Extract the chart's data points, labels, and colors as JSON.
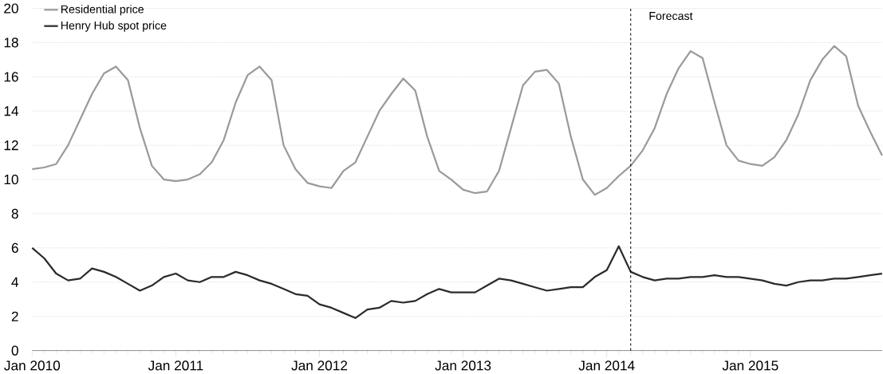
{
  "chart_data": {
    "type": "line",
    "x": [
      "2010-01",
      "2010-02",
      "2010-03",
      "2010-04",
      "2010-05",
      "2010-06",
      "2010-07",
      "2010-08",
      "2010-09",
      "2010-10",
      "2010-11",
      "2010-12",
      "2011-01",
      "2011-02",
      "2011-03",
      "2011-04",
      "2011-05",
      "2011-06",
      "2011-07",
      "2011-08",
      "2011-09",
      "2011-10",
      "2011-11",
      "2011-12",
      "2012-01",
      "2012-02",
      "2012-03",
      "2012-04",
      "2012-05",
      "2012-06",
      "2012-07",
      "2012-08",
      "2012-09",
      "2012-10",
      "2012-11",
      "2012-12",
      "2013-01",
      "2013-02",
      "2013-03",
      "2013-04",
      "2013-05",
      "2013-06",
      "2013-07",
      "2013-08",
      "2013-09",
      "2013-10",
      "2013-11",
      "2013-12",
      "2014-01",
      "2014-02",
      "2014-03",
      "2014-04",
      "2014-05",
      "2014-06",
      "2014-07",
      "2014-08",
      "2014-09",
      "2014-10",
      "2014-11",
      "2014-12",
      "2015-01",
      "2015-02",
      "2015-03",
      "2015-04",
      "2015-05",
      "2015-06",
      "2015-07",
      "2015-08",
      "2015-09",
      "2015-10",
      "2015-11",
      "2015-12"
    ],
    "series": [
      {
        "name": "Residential price",
        "color": "#9a9a9a",
        "values": [
          10.6,
          10.7,
          10.9,
          12.0,
          13.5,
          15.0,
          16.2,
          16.6,
          15.8,
          13.0,
          10.8,
          10.0,
          9.9,
          10.0,
          10.3,
          11.0,
          12.3,
          14.5,
          16.1,
          16.6,
          15.8,
          12.0,
          10.6,
          9.8,
          9.6,
          9.5,
          10.5,
          11.0,
          12.5,
          14.0,
          15.0,
          15.9,
          15.2,
          12.5,
          10.5,
          10.0,
          9.4,
          9.2,
          9.3,
          10.5,
          13.0,
          15.5,
          16.3,
          16.4,
          15.6,
          12.5,
          10.0,
          9.1,
          9.5,
          10.2,
          10.8,
          11.7,
          13.0,
          15.0,
          16.5,
          17.5,
          17.1,
          14.5,
          12.0,
          11.1,
          10.9,
          10.8,
          11.3,
          12.3,
          13.8,
          15.8,
          17.0,
          17.8,
          17.2,
          14.3,
          12.8,
          11.4
        ]
      },
      {
        "name": "Henry Hub spot price",
        "color": "#2b2b2b",
        "values": [
          6.0,
          5.4,
          4.5,
          4.1,
          4.2,
          4.8,
          4.6,
          4.3,
          3.9,
          3.5,
          3.8,
          4.3,
          4.5,
          4.1,
          4.0,
          4.3,
          4.3,
          4.6,
          4.4,
          4.1,
          3.9,
          3.6,
          3.3,
          3.2,
          2.7,
          2.5,
          2.2,
          1.9,
          2.4,
          2.5,
          2.9,
          2.8,
          2.9,
          3.3,
          3.6,
          3.4,
          3.4,
          3.4,
          3.8,
          4.2,
          4.1,
          3.9,
          3.7,
          3.5,
          3.6,
          3.7,
          3.7,
          4.3,
          4.7,
          6.1,
          4.6,
          4.3,
          4.1,
          4.2,
          4.2,
          4.3,
          4.3,
          4.4,
          4.3,
          4.3,
          4.2,
          4.1,
          3.9,
          3.8,
          4.0,
          4.1,
          4.1,
          4.2,
          4.2,
          4.3,
          4.4,
          4.5
        ]
      }
    ],
    "xlim": [
      "2010-01",
      "2015-12"
    ],
    "xticks": [
      {
        "value": "2010-01",
        "label": "Jan 2010"
      },
      {
        "value": "2011-01",
        "label": "Jan 2011"
      },
      {
        "value": "2012-01",
        "label": "Jan 2012"
      },
      {
        "value": "2013-01",
        "label": "Jan 2013"
      },
      {
        "value": "2014-01",
        "label": "Jan 2014"
      },
      {
        "value": "2015-01",
        "label": "Jan 2015"
      }
    ],
    "ylim": [
      0,
      20
    ],
    "yticks": [
      0,
      2,
      4,
      6,
      8,
      10,
      12,
      14,
      16,
      18,
      20
    ],
    "grid": "y",
    "legend": "top left",
    "marker": "none",
    "line_style": "solid",
    "ref_lines": [
      {
        "axis": "x",
        "value": "2014-03",
        "label": "Forecast",
        "line_style": "dashed",
        "color": "#000000"
      }
    ]
  }
}
